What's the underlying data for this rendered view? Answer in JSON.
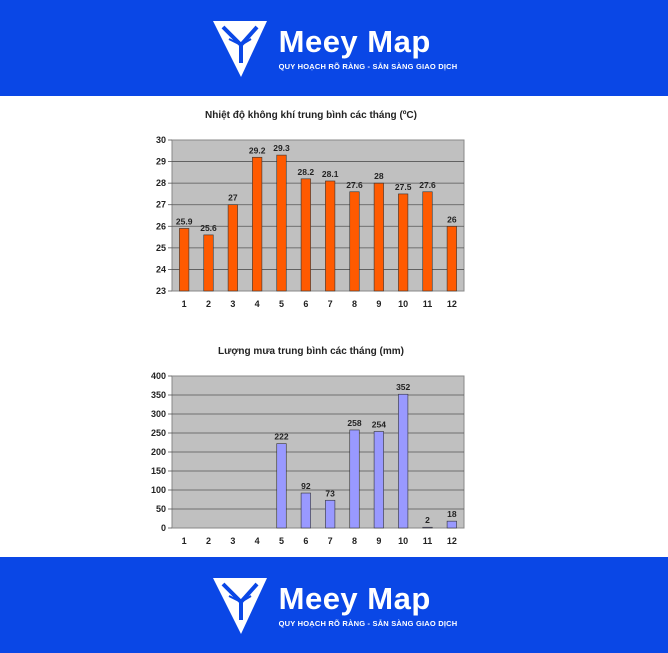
{
  "brand": {
    "name": "Meey Map",
    "tagline": "QUY HOẠCH RÕ RÀNG - SẴN SÀNG GIAO DỊCH",
    "logo_icon": "meey-map-logo-icon"
  },
  "colors": {
    "banner": "#0a47e6",
    "plot_bg": "#c0c0c0",
    "temp_bar": "#ff5a00",
    "rain_bar": "#9999ff"
  },
  "chart_data": [
    {
      "type": "bar",
      "title": "Nhiệt độ không khí trung bình các tháng (ºC)",
      "xlabel": "",
      "ylabel": "",
      "categories": [
        "1",
        "2",
        "3",
        "4",
        "5",
        "6",
        "7",
        "8",
        "9",
        "10",
        "11",
        "12"
      ],
      "values": [
        25.9,
        25.6,
        27,
        29.2,
        29.3,
        28.2,
        28.1,
        27.6,
        28,
        27.5,
        27.6,
        26
      ],
      "data_labels": [
        "25.9",
        "25.6",
        "27",
        "29.2",
        "29.3",
        "28.2",
        "28.1",
        "27.6",
        "28",
        "27.5",
        "27.6",
        "26"
      ],
      "ylim": [
        23,
        30
      ],
      "yticks": [
        "23",
        "24",
        "25",
        "26",
        "27",
        "28",
        "29",
        "30"
      ],
      "grid": true,
      "legend": "none"
    },
    {
      "type": "bar",
      "title": "Lượng mưa trung bình các tháng (mm)",
      "xlabel": "",
      "ylabel": "",
      "categories": [
        "1",
        "2",
        "3",
        "4",
        "5",
        "6",
        "7",
        "8",
        "9",
        "10",
        "11",
        "12"
      ],
      "values": [
        0,
        0,
        0,
        0,
        222,
        92,
        73,
        258,
        254,
        352,
        2,
        18
      ],
      "data_labels": [
        "",
        "",
        "",
        "",
        "222",
        "92",
        "73",
        "258",
        "254",
        "352",
        "2",
        "18"
      ],
      "ylim": [
        0,
        400
      ],
      "yticks": [
        "0",
        "50",
        "100",
        "150",
        "200",
        "250",
        "300",
        "350",
        "400"
      ],
      "grid": true,
      "legend": "none"
    }
  ]
}
